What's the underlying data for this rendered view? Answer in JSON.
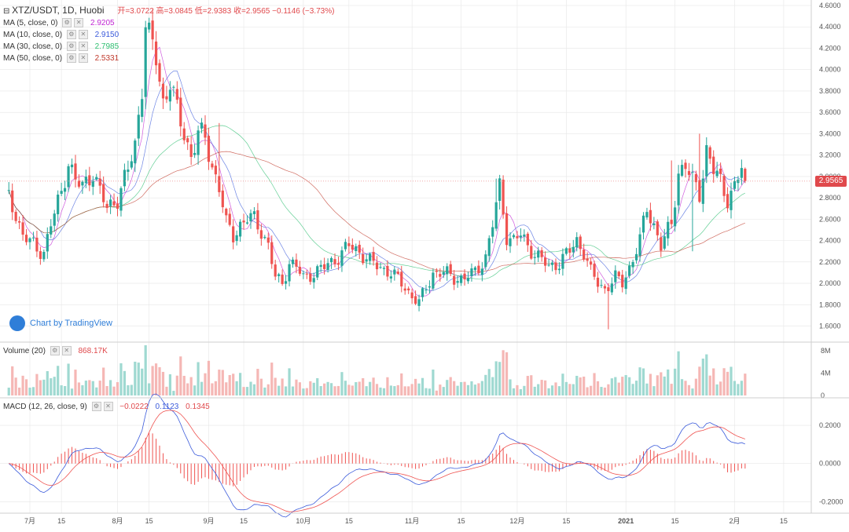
{
  "header": {
    "collapse_icon": "⊟",
    "symbol": "XTZ/USDT, 1D, Huobi",
    "ohlc": "开=3.0722  高=3.0845  低=2.9383  收=2.9565  −0.1146 (−3.73%)"
  },
  "ma": [
    {
      "label": "MA (5, close, 0)",
      "value": "2.9205",
      "color": "#c026d3"
    },
    {
      "label": "MA (10, close, 0)",
      "value": "2.9150",
      "color": "#3b5bdb"
    },
    {
      "label": "MA (30, close, 0)",
      "value": "2.7985",
      "color": "#2fbf71"
    },
    {
      "label": "MA (50, close, 0)",
      "value": "2.5331",
      "color": "#c0392b"
    }
  ],
  "price_label": "2.9565",
  "tv_brand": "Chart by TradingView",
  "volume": {
    "label": "Volume (20)",
    "value": "868.17K"
  },
  "macd": {
    "label": "MACD (12, 26, close, 9)",
    "hist": "−0.0222",
    "macd": "0.1123",
    "signal": "0.1345"
  },
  "colors": {
    "up": "#26a69a",
    "down": "#ef5350",
    "grid": "#e6e6e6",
    "axis": "#555555"
  },
  "chart_data": {
    "type": "candlestick",
    "title": "XTZ/USDT, 1D, Huobi",
    "price_axis": {
      "ylim": [
        1.45,
        4.6
      ],
      "ticks": [
        "4.6000",
        "4.4000",
        "4.2000",
        "4.0000",
        "3.8000",
        "3.6000",
        "3.4000",
        "3.2000",
        "3.0000",
        "2.8000",
        "2.6000",
        "2.4000",
        "2.2000",
        "2.0000",
        "1.8000",
        "1.6000"
      ]
    },
    "volume_axis": {
      "ylim": [
        0,
        9
      ],
      "ticks": [
        "8M",
        "4M",
        "0"
      ]
    },
    "macd_axis": {
      "ylim": [
        -0.26,
        0.34
      ],
      "ticks": [
        "0.2000",
        "0.0000",
        "-0.2000"
      ]
    },
    "x_ticks": [
      {
        "label": "7月",
        "day": 0
      },
      {
        "label": "15",
        "day": 9
      },
      {
        "label": "8月",
        "day": 25
      },
      {
        "label": "15",
        "day": 34
      },
      {
        "label": "9月",
        "day": 51
      },
      {
        "label": "15",
        "day": 61
      },
      {
        "label": "10月",
        "day": 78
      },
      {
        "label": "15",
        "day": 91
      },
      {
        "label": "11月",
        "day": 109
      },
      {
        "label": "15",
        "day": 123
      },
      {
        "label": "12月",
        "day": 139
      },
      {
        "label": "15",
        "day": 153
      },
      {
        "label": "2021",
        "day": 170
      },
      {
        "label": "15",
        "day": 184
      },
      {
        "label": "2月",
        "day": 201
      },
      {
        "label": "15",
        "day": 215
      }
    ],
    "close_anchors": [
      {
        "day": -6,
        "close": 2.8
      },
      {
        "day": -4,
        "close": 2.65
      },
      {
        "day": -2,
        "close": 2.45
      },
      {
        "day": 2,
        "close": 2.32
      },
      {
        "day": 4,
        "close": 2.3
      },
      {
        "day": 6,
        "close": 2.55
      },
      {
        "day": 9,
        "close": 2.85
      },
      {
        "day": 11,
        "close": 3.15
      },
      {
        "day": 13,
        "close": 2.95
      },
      {
        "day": 15,
        "close": 2.9
      },
      {
        "day": 18,
        "close": 3.05
      },
      {
        "day": 20,
        "close": 2.85
      },
      {
        "day": 22,
        "close": 2.7
      },
      {
        "day": 25,
        "close": 2.8
      },
      {
        "day": 28,
        "close": 3.05
      },
      {
        "day": 30,
        "close": 3.3
      },
      {
        "day": 32,
        "close": 3.85
      },
      {
        "day": 33,
        "close": 4.45
      },
      {
        "day": 34,
        "close": 4.3
      },
      {
        "day": 36,
        "close": 4.1
      },
      {
        "day": 38,
        "close": 3.7
      },
      {
        "day": 40,
        "close": 3.9
      },
      {
        "day": 42,
        "close": 3.6
      },
      {
        "day": 44,
        "close": 3.4
      },
      {
        "day": 46,
        "close": 3.2
      },
      {
        "day": 48,
        "close": 3.4
      },
      {
        "day": 50,
        "close": 3.35
      },
      {
        "day": 52,
        "close": 3.1
      },
      {
        "day": 54,
        "close": 2.9
      },
      {
        "day": 56,
        "close": 2.55
      },
      {
        "day": 58,
        "close": 2.45
      },
      {
        "day": 60,
        "close": 2.55
      },
      {
        "day": 62,
        "close": 2.6
      },
      {
        "day": 64,
        "close": 2.6
      },
      {
        "day": 66,
        "close": 2.5
      },
      {
        "day": 68,
        "close": 2.35
      },
      {
        "day": 70,
        "close": 2.05
      },
      {
        "day": 72,
        "close": 2.0
      },
      {
        "day": 74,
        "close": 2.2
      },
      {
        "day": 76,
        "close": 2.15
      },
      {
        "day": 78,
        "close": 2.05
      },
      {
        "day": 81,
        "close": 2.1
      },
      {
        "day": 84,
        "close": 2.15
      },
      {
        "day": 88,
        "close": 2.25
      },
      {
        "day": 91,
        "close": 2.35
      },
      {
        "day": 94,
        "close": 2.3
      },
      {
        "day": 97,
        "close": 2.2
      },
      {
        "day": 100,
        "close": 2.15
      },
      {
        "day": 103,
        "close": 2.1
      },
      {
        "day": 106,
        "close": 2.0
      },
      {
        "day": 109,
        "close": 1.88
      },
      {
        "day": 111,
        "close": 1.82
      },
      {
        "day": 113,
        "close": 1.95
      },
      {
        "day": 115,
        "close": 2.1
      },
      {
        "day": 118,
        "close": 2.1
      },
      {
        "day": 121,
        "close": 2.05
      },
      {
        "day": 124,
        "close": 2.05
      },
      {
        "day": 127,
        "close": 2.1
      },
      {
        "day": 130,
        "close": 2.25
      },
      {
        "day": 132,
        "close": 2.55
      },
      {
        "day": 134,
        "close": 2.9
      },
      {
        "day": 136,
        "close": 2.45
      },
      {
        "day": 138,
        "close": 2.4
      },
      {
        "day": 140,
        "close": 2.45
      },
      {
        "day": 142,
        "close": 2.35
      },
      {
        "day": 145,
        "close": 2.25
      },
      {
        "day": 148,
        "close": 2.15
      },
      {
        "day": 151,
        "close": 2.2
      },
      {
        "day": 154,
        "close": 2.3
      },
      {
        "day": 156,
        "close": 2.4
      },
      {
        "day": 158,
        "close": 2.3
      },
      {
        "day": 160,
        "close": 2.1
      },
      {
        "day": 162,
        "close": 2.0
      },
      {
        "day": 164,
        "close": 1.95
      },
      {
        "day": 167,
        "close": 2.05
      },
      {
        "day": 169,
        "close": 2.0
      },
      {
        "day": 171,
        "close": 2.15
      },
      {
        "day": 174,
        "close": 2.4
      },
      {
        "day": 176,
        "close": 2.7
      },
      {
        "day": 178,
        "close": 2.55
      },
      {
        "day": 180,
        "close": 2.35
      },
      {
        "day": 183,
        "close": 2.55
      },
      {
        "day": 185,
        "close": 3.05
      },
      {
        "day": 187,
        "close": 3.1
      },
      {
        "day": 189,
        "close": 2.95
      },
      {
        "day": 191,
        "close": 2.85
      },
      {
        "day": 193,
        "close": 3.25
      },
      {
        "day": 195,
        "close": 3.05
      },
      {
        "day": 197,
        "close": 2.95
      },
      {
        "day": 199,
        "close": 2.8
      },
      {
        "day": 201,
        "close": 2.9
      },
      {
        "day": 203,
        "close": 3.07
      },
      {
        "day": 204,
        "close": 2.9565
      }
    ],
    "spikes": [
      {
        "day": 54,
        "high": 3.5
      },
      {
        "day": 133,
        "high": 2.98
      },
      {
        "day": 165,
        "low": 1.57
      },
      {
        "day": 183,
        "high": 3.15
      },
      {
        "day": 191,
        "high": 3.4
      },
      {
        "day": 189,
        "low": 2.3
      }
    ],
    "last": {
      "open": 3.0722,
      "high": 3.0845,
      "low": 2.9383,
      "close": 2.9565
    },
    "ma_lines": [
      "MA 5",
      "MA 10",
      "MA 30",
      "MA 50"
    ]
  }
}
